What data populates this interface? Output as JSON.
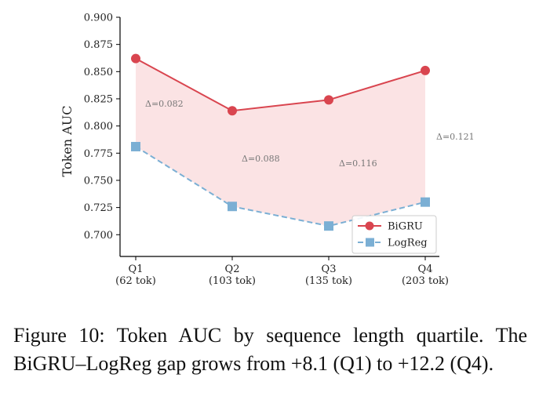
{
  "chart_data": {
    "type": "line",
    "categories": [
      "Q1\n(62 tok)",
      "Q2\n(103 tok)",
      "Q3\n(135 tok)",
      "Q4\n(203 tok)"
    ],
    "series": [
      {
        "name": "BiGRU",
        "values": [
          0.862,
          0.814,
          0.824,
          0.851
        ],
        "color": "#d9454f",
        "marker": "circle",
        "style": "solid"
      },
      {
        "name": "LogReg",
        "values": [
          0.781,
          0.726,
          0.708,
          0.73
        ],
        "color": "#7bafd4",
        "marker": "square",
        "style": "dashed"
      }
    ],
    "annotations": [
      "Δ=0.082",
      "Δ=0.088",
      "Δ=0.116",
      "Δ=0.121"
    ],
    "fill_between": {
      "color": "#fbe3e4"
    },
    "ylabel": "Token AUC",
    "xlabel": "",
    "ylim": [
      0.68,
      0.9
    ],
    "yticks": [
      "0.700",
      "0.725",
      "0.750",
      "0.775",
      "0.800",
      "0.825",
      "0.850",
      "0.875",
      "0.900"
    ],
    "legend_position": "lower-right",
    "grid": false
  },
  "caption": "Figure 10: Token AUC by sequence length quartile. The BiGRU–LogReg gap grows from +8.1 (Q1) to +12.2 (Q4)."
}
